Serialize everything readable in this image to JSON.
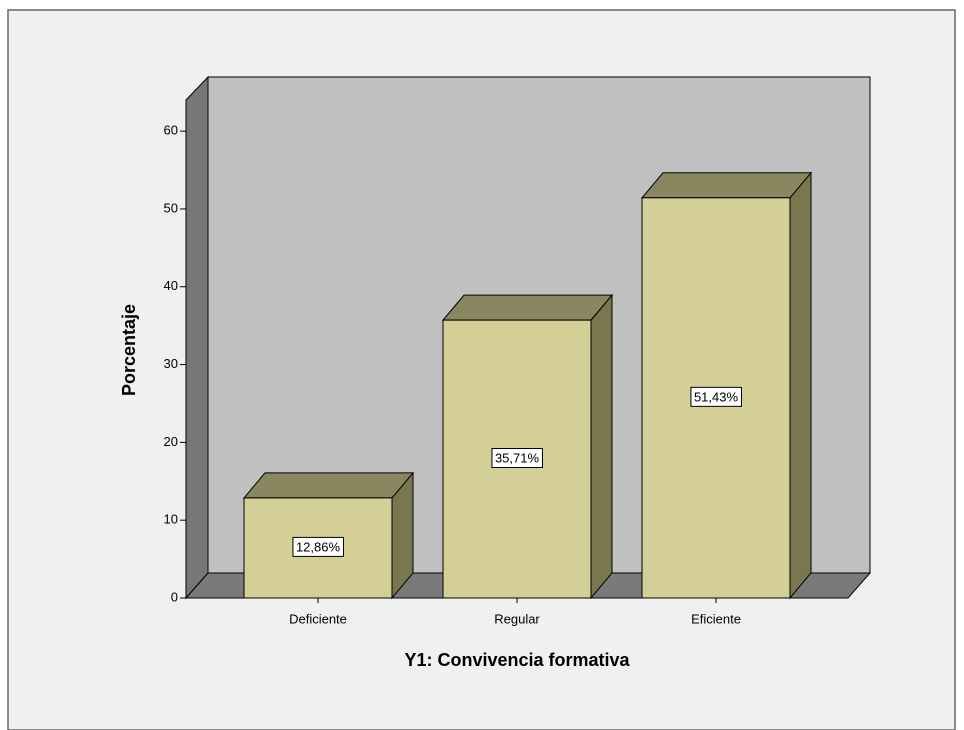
{
  "chart_data": {
    "type": "bar3d",
    "x_label": "Y1: Convivencia formativa",
    "y_label": "Porcentaje",
    "categories": [
      "Deficiente",
      "Regular",
      "Eficiente"
    ],
    "values": [
      12.86,
      35.71,
      51.43
    ],
    "value_labels": [
      "12,86%",
      "35,71%",
      "51,43%"
    ],
    "color": "#d4cf96",
    "ylim": [
      0,
      64
    ],
    "yticks": [
      0,
      10,
      20,
      30,
      40,
      50,
      60
    ]
  }
}
